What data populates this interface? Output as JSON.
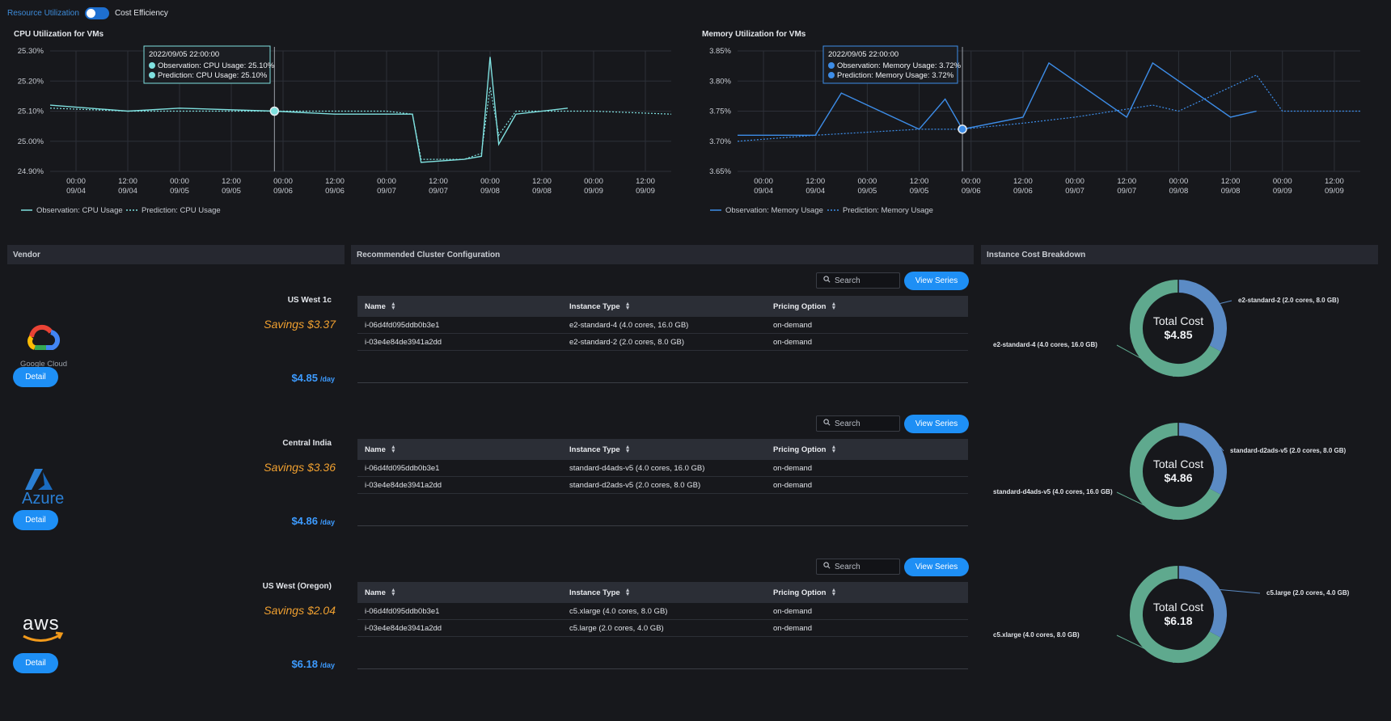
{
  "toggle": {
    "left_label": "Resource Utilization",
    "right_label": "Cost Efficiency"
  },
  "colors": {
    "cpu_line": "#7fe0df",
    "mem_line": "#3d8de8",
    "accent": "#1e8ff5",
    "savings": "#f0a030",
    "price": "#3d9bff",
    "donut_large": "#5fa98e",
    "donut_small": "#5b8bc5"
  },
  "cpu_chart": {
    "title": "CPU Utilization for VMs",
    "y_ticks": [
      "25.30%",
      "25.20%",
      "25.10%",
      "25.00%",
      "24.90%"
    ],
    "x_ticks": [
      [
        "00:00",
        "09/04"
      ],
      [
        "12:00",
        "09/04"
      ],
      [
        "00:00",
        "09/05"
      ],
      [
        "12:00",
        "09/05"
      ],
      [
        "00:00",
        "09/06"
      ],
      [
        "12:00",
        "09/06"
      ],
      [
        "00:00",
        "09/07"
      ],
      [
        "12:00",
        "09/07"
      ],
      [
        "00:00",
        "09/08"
      ],
      [
        "12:00",
        "09/08"
      ],
      [
        "00:00",
        "09/09"
      ],
      [
        "12:00",
        "09/09"
      ]
    ],
    "legend": [
      "Observation: CPU Usage",
      "Prediction: CPU Usage"
    ],
    "tooltip": {
      "date": "2022/09/05 22:00:00",
      "obs": "Observation: CPU Usage: 25.10%",
      "pred": "Prediction: CPU Usage: 25.10%"
    }
  },
  "mem_chart": {
    "title": "Memory Utilization for VMs",
    "y_ticks": [
      "3.85%",
      "3.80%",
      "3.75%",
      "3.70%",
      "3.65%"
    ],
    "x_ticks": [
      [
        "00:00",
        "09/04"
      ],
      [
        "12:00",
        "09/04"
      ],
      [
        "00:00",
        "09/05"
      ],
      [
        "12:00",
        "09/05"
      ],
      [
        "00:00",
        "09/06"
      ],
      [
        "12:00",
        "09/06"
      ],
      [
        "00:00",
        "09/07"
      ],
      [
        "12:00",
        "09/07"
      ],
      [
        "00:00",
        "09/08"
      ],
      [
        "12:00",
        "09/08"
      ],
      [
        "00:00",
        "09/09"
      ],
      [
        "12:00",
        "09/09"
      ]
    ],
    "legend": [
      "Observation: Memory Usage",
      "Prediction: Memory Usage"
    ],
    "tooltip": {
      "date": "2022/09/05 22:00:00",
      "obs": "Observation: Memory Usage: 3.72%",
      "pred": "Prediction: Memory Usage: 3.72%"
    }
  },
  "chart_data": [
    {
      "type": "line",
      "title": "CPU Utilization for VMs",
      "ylim": [
        24.9,
        25.3
      ],
      "x_range": [
        "09/03 18:00",
        "09/09 18:00"
      ],
      "series": [
        {
          "name": "Observation: CPU Usage",
          "x": [
            "09/03 18:00",
            "09/04 12:00",
            "09/05 00:00",
            "09/05 22:00",
            "09/06 12:00",
            "09/07 00:00",
            "09/07 06:00",
            "09/07 08:00",
            "09/07 18:00",
            "09/07 22:00",
            "09/08 00:00",
            "09/08 02:00",
            "09/08 06:00",
            "09/08 18:00"
          ],
          "y": [
            25.12,
            25.1,
            25.11,
            25.1,
            25.09,
            25.09,
            25.09,
            24.93,
            24.94,
            24.95,
            25.28,
            24.99,
            25.09,
            25.11
          ]
        },
        {
          "name": "Prediction: CPU Usage",
          "x": [
            "09/03 18:00",
            "09/04 12:00",
            "09/05 00:00",
            "09/05 22:00",
            "09/06 12:00",
            "09/07 00:00",
            "09/07 06:00",
            "09/07 08:00",
            "09/07 18:00",
            "09/07 22:00",
            "09/08 00:00",
            "09/08 02:00",
            "09/08 06:00",
            "09/09 00:00",
            "09/09 18:00"
          ],
          "y": [
            25.11,
            25.1,
            25.1,
            25.1,
            25.1,
            25.1,
            25.09,
            24.94,
            24.94,
            24.96,
            25.18,
            25.02,
            25.1,
            25.1,
            25.09
          ]
        }
      ]
    },
    {
      "type": "line",
      "title": "Memory Utilization for VMs",
      "ylim": [
        3.65,
        3.85
      ],
      "x_range": [
        "09/03 18:00",
        "09/09 18:00"
      ],
      "series": [
        {
          "name": "Observation: Memory Usage",
          "x": [
            "09/03 18:00",
            "09/04 12:00",
            "09/04 18:00",
            "09/05 12:00",
            "09/05 18:00",
            "09/05 22:00",
            "09/06 12:00",
            "09/06 18:00",
            "09/07 12:00",
            "09/07 18:00",
            "09/08 12:00",
            "09/08 18:00"
          ],
          "y": [
            3.71,
            3.71,
            3.78,
            3.72,
            3.77,
            3.72,
            3.74,
            3.83,
            3.74,
            3.83,
            3.74,
            3.75
          ]
        },
        {
          "name": "Prediction: Memory Usage",
          "x": [
            "09/03 18:00",
            "09/04 12:00",
            "09/05 12:00",
            "09/05 22:00",
            "09/06 12:00",
            "09/07 00:00",
            "09/07 18:00",
            "09/08 00:00",
            "09/08 18:00",
            "09/09 00:00",
            "09/09 18:00"
          ],
          "y": [
            3.7,
            3.71,
            3.72,
            3.72,
            3.73,
            3.74,
            3.76,
            3.75,
            3.81,
            3.75,
            3.75
          ]
        }
      ]
    }
  ],
  "panels": {
    "vendor": "Vendor",
    "config": "Recommended Cluster Configuration",
    "breakdown": "Instance Cost Breakdown"
  },
  "table_header": {
    "name": "Name",
    "type": "Instance Type",
    "pricing": "Pricing Option"
  },
  "search_placeholder": "Search",
  "view_series": "View Series",
  "detail": "Detail",
  "price_unit": "/day",
  "total_cost_label": "Total Cost",
  "vendors": [
    {
      "logo": "google-cloud",
      "logo_text": "Google Cloud",
      "region": "US West 1c",
      "savings": "Savings $3.37",
      "price": "$4.85",
      "rows": [
        [
          "i-06d4fd095ddb0b3e1",
          "e2-standard-4 (4.0 cores, 16.0 GB)",
          "on-demand"
        ],
        [
          "i-03e4e84de3941a2dd",
          "e2-standard-2 (2.0 cores, 8.0 GB)",
          "on-demand"
        ]
      ],
      "total": "$4.85",
      "small_label": "e2-standard-2 (2.0 cores, 8.0 GB)",
      "large_label": "e2-standard-4 (4.0 cores, 16.0 GB)",
      "small_share": 0.33
    },
    {
      "logo": "azure",
      "logo_text": "Azure",
      "region": "Central India",
      "savings": "Savings $3.36",
      "price": "$4.86",
      "rows": [
        [
          "i-06d4fd095ddb0b3e1",
          "standard-d4ads-v5 (4.0 cores, 16.0 GB)",
          "on-demand"
        ],
        [
          "i-03e4e84de3941a2dd",
          "standard-d2ads-v5 (2.0 cores, 8.0 GB)",
          "on-demand"
        ]
      ],
      "total": "$4.86",
      "small_label": "standard-d2ads-v5 (2.0 cores, 8.0 GB)",
      "large_label": "standard-d4ads-v5 (4.0 cores, 16.0 GB)",
      "small_share": 0.33
    },
    {
      "logo": "aws",
      "logo_text": "aws",
      "region": "US West (Oregon)",
      "savings": "Savings $2.04",
      "price": "$6.18",
      "rows": [
        [
          "i-06d4fd095ddb0b3e1",
          "c5.xlarge (4.0 cores, 8.0 GB)",
          "on-demand"
        ],
        [
          "i-03e4e84de3941a2dd",
          "c5.large (2.0 cores, 4.0 GB)",
          "on-demand"
        ]
      ],
      "total": "$6.18",
      "small_label": "c5.large (2.0 cores, 4.0 GB)",
      "large_label": "c5.xlarge (4.0 cores, 8.0 GB)",
      "small_share": 0.33
    }
  ]
}
